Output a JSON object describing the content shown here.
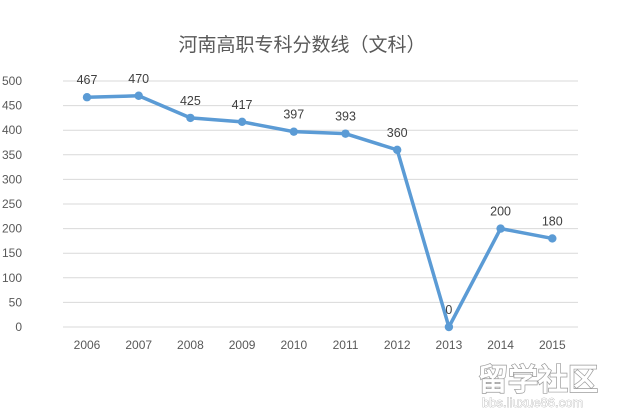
{
  "chart_data": {
    "type": "line",
    "title": "河南高职专科分数线（文科）",
    "xlabel": "",
    "ylabel": "",
    "categories": [
      "2006",
      "2007",
      "2008",
      "2009",
      "2010",
      "2011",
      "2012",
      "2013",
      "2014",
      "2015"
    ],
    "series": [
      {
        "values": [
          467,
          470,
          425,
          417,
          397,
          393,
          360,
          0,
          200,
          180
        ]
      }
    ],
    "ylim": [
      0,
      500
    ],
    "yticks": [
      0,
      50,
      100,
      150,
      200,
      250,
      300,
      350,
      400,
      450,
      500
    ],
    "grid": true,
    "legend": "none",
    "data_labels": true,
    "line_color": "#5b9bd5"
  },
  "watermark": {
    "text": "留学社区",
    "subtext": "bbs.liuxue86.com"
  }
}
